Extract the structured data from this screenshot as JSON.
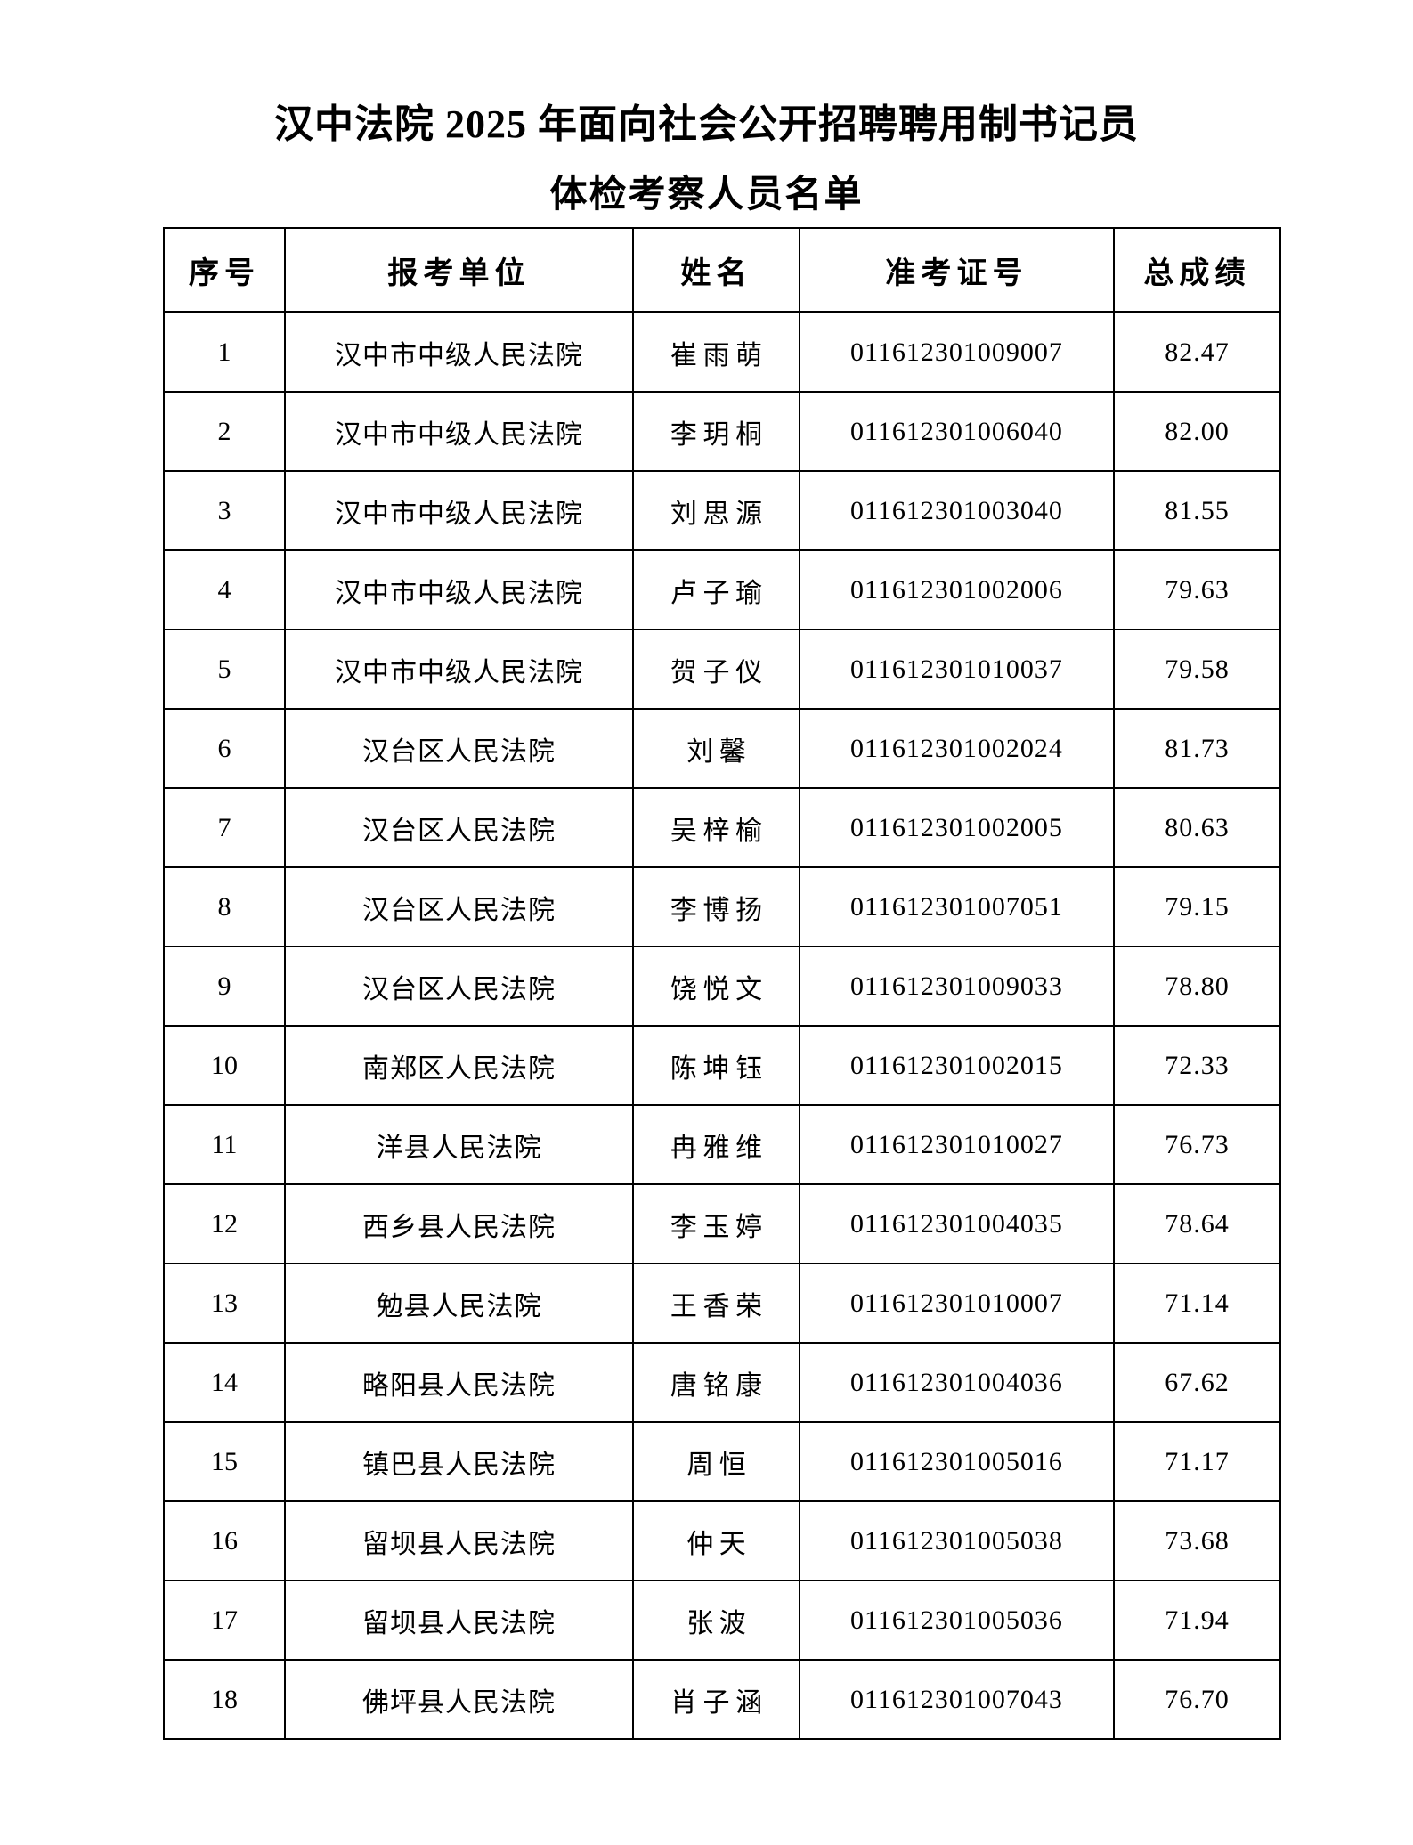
{
  "page": {
    "title_line1": "汉中法院 2025 年面向社会公开招聘聘用制书记员",
    "title_line2": "体检考察人员名单"
  },
  "table": {
    "columns": [
      "序号",
      "报考单位",
      "姓名",
      "准考证号",
      "总成绩"
    ],
    "rows": [
      {
        "no": "1",
        "unit": "汉中市中级人民法院",
        "name": "崔雨萌",
        "ticket": "011612301009007",
        "score": "82.47"
      },
      {
        "no": "2",
        "unit": "汉中市中级人民法院",
        "name": "李玥桐",
        "ticket": "011612301006040",
        "score": "82.00"
      },
      {
        "no": "3",
        "unit": "汉中市中级人民法院",
        "name": "刘思源",
        "ticket": "011612301003040",
        "score": "81.55"
      },
      {
        "no": "4",
        "unit": "汉中市中级人民法院",
        "name": "卢子瑜",
        "ticket": "011612301002006",
        "score": "79.63"
      },
      {
        "no": "5",
        "unit": "汉中市中级人民法院",
        "name": "贺子仪",
        "ticket": "011612301010037",
        "score": "79.58"
      },
      {
        "no": "6",
        "unit": "汉台区人民法院",
        "name": "刘馨",
        "ticket": "011612301002024",
        "score": "81.73"
      },
      {
        "no": "7",
        "unit": "汉台区人民法院",
        "name": "吴梓榆",
        "ticket": "011612301002005",
        "score": "80.63"
      },
      {
        "no": "8",
        "unit": "汉台区人民法院",
        "name": "李博扬",
        "ticket": "011612301007051",
        "score": "79.15"
      },
      {
        "no": "9",
        "unit": "汉台区人民法院",
        "name": "饶悦文",
        "ticket": "011612301009033",
        "score": "78.80"
      },
      {
        "no": "10",
        "unit": "南郑区人民法院",
        "name": "陈坤钰",
        "ticket": "011612301002015",
        "score": "72.33"
      },
      {
        "no": "11",
        "unit": "洋县人民法院",
        "name": "冉雅维",
        "ticket": "011612301010027",
        "score": "76.73"
      },
      {
        "no": "12",
        "unit": "西乡县人民法院",
        "name": "李玉婷",
        "ticket": "011612301004035",
        "score": "78.64"
      },
      {
        "no": "13",
        "unit": "勉县人民法院",
        "name": "王香荣",
        "ticket": "011612301010007",
        "score": "71.14"
      },
      {
        "no": "14",
        "unit": "略阳县人民法院",
        "name": "唐铭康",
        "ticket": "011612301004036",
        "score": "67.62"
      },
      {
        "no": "15",
        "unit": "镇巴县人民法院",
        "name": "周恒",
        "ticket": "011612301005016",
        "score": "71.17"
      },
      {
        "no": "16",
        "unit": "留坝县人民法院",
        "name": "仲天",
        "ticket": "011612301005038",
        "score": "73.68"
      },
      {
        "no": "17",
        "unit": "留坝县人民法院",
        "name": "张波",
        "ticket": "011612301005036",
        "score": "71.94"
      },
      {
        "no": "18",
        "unit": "佛坪县人民法院",
        "name": "肖子涵",
        "ticket": "011612301007043",
        "score": "76.70"
      }
    ]
  }
}
